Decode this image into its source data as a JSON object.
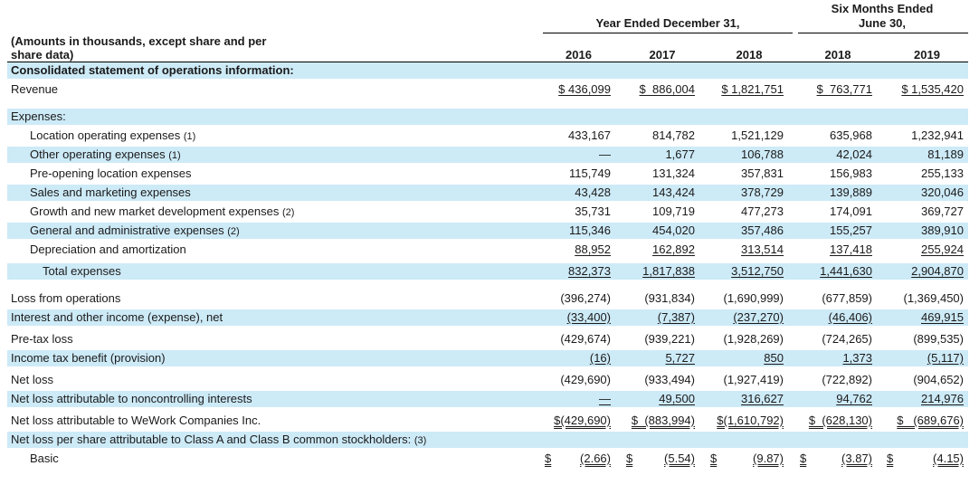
{
  "header": {
    "year_group": "Year Ended December 31,",
    "six_months_line1": "Six Months Ended",
    "six_months_line2": "June 30,",
    "amounts_line1": "(Amounts in thousands, except share and per",
    "amounts_line2": "share data)",
    "columns": [
      "2016",
      "2017",
      "2018",
      "2018",
      "2019"
    ]
  },
  "section_title": "Consolidated statement of operations information:",
  "rows": [
    {
      "label": "Revenue",
      "note": "",
      "vals": [
        "$ 436,099",
        "$  886,004",
        "$ 1,821,751",
        "$  763,771",
        "$ 1,535,420"
      ]
    },
    {
      "label": "Expenses:",
      "note": "",
      "vals": []
    },
    {
      "label": "Location operating expenses",
      "note": "(1)",
      "vals": [
        "433,167",
        "814,782",
        "1,521,129",
        "635,968",
        "1,232,941"
      ]
    },
    {
      "label": "Other operating expenses",
      "note": "(1)",
      "vals": [
        "—",
        "1,677",
        "106,788",
        "42,024",
        "81,189"
      ]
    },
    {
      "label": "Pre-opening location expenses",
      "note": "",
      "vals": [
        "115,749",
        "131,324",
        "357,831",
        "156,983",
        "255,133"
      ]
    },
    {
      "label": "Sales and marketing expenses",
      "note": "",
      "vals": [
        "43,428",
        "143,424",
        "378,729",
        "139,889",
        "320,046"
      ]
    },
    {
      "label": "Growth and new market development expenses",
      "note": "(2)",
      "vals": [
        "35,731",
        "109,719",
        "477,273",
        "174,091",
        "369,727"
      ]
    },
    {
      "label": "General and administrative expenses",
      "note": "(2)",
      "vals": [
        "115,346",
        "454,020",
        "357,486",
        "155,257",
        "389,910"
      ]
    },
    {
      "label": "Depreciation and amortization",
      "note": "",
      "vals": [
        "88,952",
        "162,892",
        "313,514",
        "137,418",
        "255,924"
      ]
    },
    {
      "label": "Total expenses",
      "note": "",
      "vals": [
        "832,373",
        "1,817,838",
        "3,512,750",
        "1,441,630",
        "2,904,870"
      ]
    },
    {
      "label": "Loss from operations",
      "note": "",
      "vals": [
        "(396,274)",
        "(931,834)",
        "(1,690,999)",
        "(677,859)",
        "(1,369,450)"
      ]
    },
    {
      "label": "Interest and other income (expense), net",
      "note": "",
      "vals": [
        "(33,400)",
        "(7,387)",
        "(237,270)",
        "(46,406)",
        "469,915"
      ]
    },
    {
      "label": "Pre-tax loss",
      "note": "",
      "vals": [
        "(429,674)",
        "(939,221)",
        "(1,928,269)",
        "(724,265)",
        "(899,535)"
      ]
    },
    {
      "label": "Income tax benefit (provision)",
      "note": "",
      "vals": [
        "(16)",
        "5,727",
        "850",
        "1,373",
        "(5,117)"
      ]
    },
    {
      "label": "Net loss",
      "note": "",
      "vals": [
        "(429,690)",
        "(933,494)",
        "(1,927,419)",
        "(722,892)",
        "(904,652)"
      ]
    },
    {
      "label": "Net loss attributable to noncontrolling interests",
      "note": "",
      "vals": [
        "—",
        "49,500",
        "316,627",
        "94,762",
        "214,976"
      ]
    },
    {
      "label": "Net loss attributable to WeWork Companies Inc.",
      "note": "",
      "vals": [
        "$(429,690)",
        "$  (883,994)",
        "$(1,610,792)",
        "$  (628,130)",
        "$   (689,676)"
      ]
    },
    {
      "label": "Net loss per share attributable to Class A and Class B common stockholders:",
      "note": "(3)",
      "vals": []
    },
    {
      "label": "Basic",
      "note": "",
      "vals": [
        "(2.66)",
        "(5.54)",
        "(9.87)",
        "(3.87)",
        "(4.15)"
      ],
      "currency": "$"
    }
  ]
}
